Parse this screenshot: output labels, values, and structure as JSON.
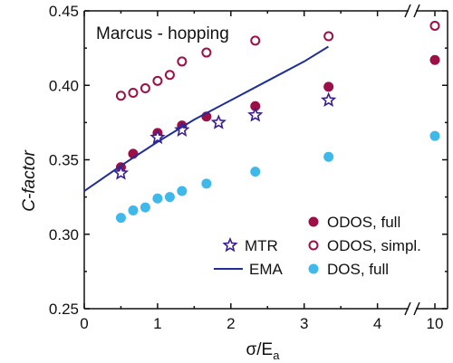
{
  "chart_data": {
    "type": "scatter",
    "title": "",
    "annotation": "Marcus - hopping",
    "xlabel_main": "σ/E",
    "xlabel_sub": "a",
    "ylabel": "C-factor",
    "ylim": [
      0.25,
      0.45
    ],
    "xlim_main": [
      0,
      4.4
    ],
    "x_break_value": 10,
    "x_ticks_main": [
      "0",
      "1",
      "2",
      "3",
      "4"
    ],
    "x_tick_break": "10",
    "y_ticks": [
      "0.25",
      "0.30",
      "0.35",
      "0.40",
      "0.45"
    ],
    "y_tick_values": [
      0.25,
      0.3,
      0.35,
      0.4,
      0.45
    ],
    "grid": false,
    "legend_placement": "bottom-right",
    "colors": {
      "odos": "#9c0f47",
      "dos": "#3fb8ea",
      "mtr": "#3b1e8f",
      "ema": "#1f2f96"
    },
    "series": [
      {
        "name": "ODOS, full",
        "marker": "filled-circle",
        "color": "#9c0f47",
        "x": [
          0.5,
          0.667,
          1.0,
          1.333,
          1.667,
          2.333,
          3.333,
          10
        ],
        "y": [
          0.345,
          0.354,
          0.368,
          0.373,
          0.379,
          0.386,
          0.399,
          0.417
        ]
      },
      {
        "name": "ODOS, simpl.",
        "marker": "open-circle",
        "color": "#9c0f47",
        "x": [
          0.5,
          0.667,
          0.833,
          1.0,
          1.167,
          1.333,
          1.667,
          2.333,
          3.333,
          10
        ],
        "y": [
          0.393,
          0.395,
          0.398,
          0.403,
          0.407,
          0.416,
          0.422,
          0.43,
          0.433,
          0.44
        ]
      },
      {
        "name": "DOS, full",
        "marker": "filled-circle",
        "color": "#3fb8ea",
        "x": [
          0.5,
          0.667,
          0.833,
          1.0,
          1.167,
          1.333,
          1.667,
          2.333,
          3.333,
          10
        ],
        "y": [
          0.311,
          0.316,
          0.318,
          0.324,
          0.325,
          0.329,
          0.334,
          0.342,
          0.352,
          0.366
        ]
      },
      {
        "name": "MTR",
        "marker": "open-star",
        "color": "#3b1e8f",
        "x": [
          0.5,
          1.0,
          1.333,
          1.833,
          2.333,
          3.333
        ],
        "y": [
          0.341,
          0.365,
          0.37,
          0.375,
          0.38,
          0.39
        ]
      },
      {
        "name": "EMA",
        "marker": "line",
        "color": "#1f2f96",
        "x": [
          0.0,
          0.5,
          1.0,
          1.5,
          2.0,
          2.5,
          3.0,
          3.33
        ],
        "y": [
          0.329,
          0.346,
          0.362,
          0.377,
          0.39,
          0.403,
          0.416,
          0.426
        ]
      }
    ]
  }
}
